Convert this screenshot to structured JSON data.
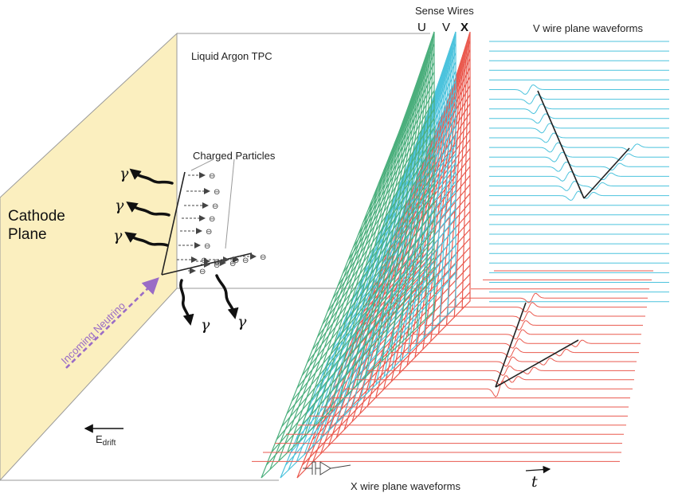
{
  "labels": {
    "sense_wires": "Sense Wires",
    "u": "U",
    "v": "V",
    "x": "X",
    "v_waveforms": "V wire plane waveforms",
    "x_waveforms": "X wire plane waveforms",
    "tpc": "Liquid Argon TPC",
    "charged": "Charged Particles",
    "cathode_1": "Cathode",
    "cathode_2": "Plane",
    "neutrino": "Incoming Neutrino",
    "edrift_main": "E",
    "edrift_sub": "drift",
    "t": "t",
    "gamma": "γ",
    "electron": "⊖"
  },
  "colors": {
    "cathode": "#fbefbf",
    "u_wires": "#4caf7d",
    "v_wires": "#4cc3dd",
    "x_wires": "#ea5a4f",
    "neutrino": "#9a6cc6",
    "track": "#222222"
  }
}
